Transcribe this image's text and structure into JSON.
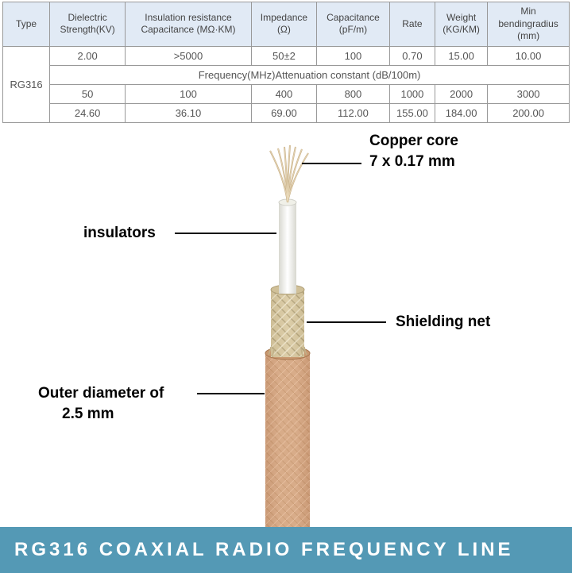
{
  "table": {
    "headers": [
      "Type",
      "Dielectric\nStrength(KV)",
      "Insulation resistance\nCapacitance (MΩ·KM)",
      "Impedance\n(Ω)",
      "Capacitance\n(pF/m)",
      "Rate",
      "Weight\n(KG/KM)",
      "Min\nbendingradius\n(mm)"
    ],
    "type_label": "RG316",
    "row1": [
      "2.00",
      ">5000",
      "50±2",
      "100",
      "0.70",
      "15.00",
      "10.00"
    ],
    "freq_header": "Frequency(MHz)Attenuation constant (dB/100m)",
    "row2": [
      "50",
      "100",
      "400",
      "800",
      "1000",
      "2000",
      "3000"
    ],
    "row3": [
      "24.60",
      "36.10",
      "69.00",
      "112.00",
      "155.00",
      "184.00",
      "200.00"
    ]
  },
  "labels": {
    "copper_core_1": "Copper core",
    "copper_core_2": "7 x 0.17 mm",
    "insulators": "insulators",
    "shielding": "Shielding net",
    "outer_1": "Outer diameter of",
    "outer_2": "2.5 mm"
  },
  "banner": "RG316 COAXIAL RADIO FREQUENCY LINE",
  "colors": {
    "header_bg": "#e1eaf5",
    "banner_bg": "#5499b5",
    "jacket": "#d4a582",
    "jacket_dark": "#b88560",
    "braid": "#d8c8a0",
    "braid_dark": "#b8a880",
    "insulator": "#f5f5f0",
    "copper": "#c8b088"
  }
}
